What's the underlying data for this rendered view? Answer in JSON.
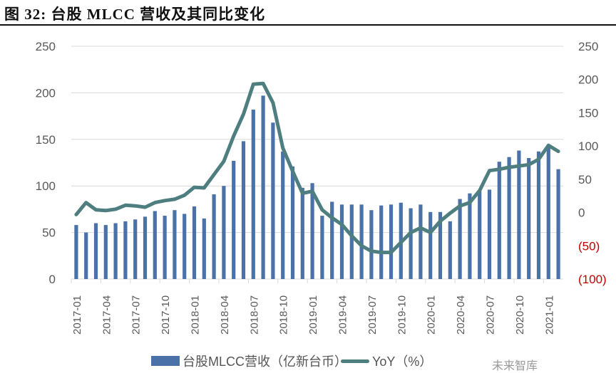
{
  "title": "图  32:  台股 MLCC 营收及其同比变化",
  "legend": {
    "bar_label": "台股MLCC营收（亿新台币）",
    "line_label": "YoY（%）"
  },
  "watermark": "未来智库",
  "colors": {
    "bar": "#4a72a8",
    "line": "#4e7e80",
    "grid": "#d9d9d9",
    "axis_text": "#595959",
    "negative_text": "#c00000"
  },
  "chart_data": {
    "type": "bar+line",
    "title": "台股 MLCC 营收及其同比变化",
    "xlabel": "",
    "ylabel_left": "台股MLCC营收（亿新台币）",
    "ylabel_right": "YoY（%）",
    "ylim_left": [
      0,
      250
    ],
    "ylim_right": [
      -100,
      250
    ],
    "yticks_left": [
      "0",
      "50",
      "100",
      "150",
      "200",
      "250"
    ],
    "yticks_right": [
      "(100)",
      "(50)",
      "0",
      "50",
      "100",
      "150",
      "200",
      "250"
    ],
    "grid": true,
    "legend_position": "bottom",
    "x_tick_labels": [
      "2017-01",
      "2017-04",
      "2017-07",
      "2017-10",
      "2018-01",
      "2018-04",
      "2018-07",
      "2018-10",
      "2019-01",
      "2019-04",
      "2019-07",
      "2019-10",
      "2020-01",
      "2020-04",
      "2020-07",
      "2020-10",
      "2021-01"
    ],
    "categories": [
      "2017-01",
      "2017-02",
      "2017-03",
      "2017-04",
      "2017-05",
      "2017-06",
      "2017-07",
      "2017-08",
      "2017-09",
      "2017-10",
      "2017-11",
      "2017-12",
      "2018-01",
      "2018-02",
      "2018-03",
      "2018-04",
      "2018-05",
      "2018-06",
      "2018-07",
      "2018-08",
      "2018-09",
      "2018-10",
      "2018-11",
      "2018-12",
      "2019-01",
      "2019-02",
      "2019-03",
      "2019-04",
      "2019-05",
      "2019-06",
      "2019-07",
      "2019-08",
      "2019-09",
      "2019-10",
      "2019-11",
      "2019-12",
      "2020-01",
      "2020-02",
      "2020-03",
      "2020-04",
      "2020-05",
      "2020-06",
      "2020-07",
      "2020-08",
      "2020-09",
      "2020-10",
      "2020-11",
      "2020-12",
      "2021-01",
      "2021-02"
    ],
    "series": [
      {
        "name": "台股MLCC营收（亿新台币）",
        "type": "bar",
        "axis": "left",
        "values": [
          58,
          50,
          60,
          58,
          60,
          62,
          64,
          67,
          73,
          68,
          74,
          70,
          78,
          65,
          91,
          100,
          127,
          148,
          182,
          197,
          168,
          137,
          121,
          98,
          103,
          68,
          83,
          80,
          80,
          80,
          74,
          79,
          80,
          82,
          76,
          80,
          72,
          72,
          62,
          86,
          92,
          95,
          96,
          126,
          131,
          138,
          130,
          137,
          144,
          118
        ]
      },
      {
        "name": "YoY（%）",
        "type": "line",
        "axis": "right",
        "values": [
          -3,
          15,
          4,
          3,
          5,
          11,
          10,
          8,
          15,
          18,
          20,
          26,
          38,
          37,
          57,
          77,
          115,
          148,
          193,
          194,
          165,
          97,
          62,
          29,
          32,
          4,
          -8,
          -18,
          -35,
          -50,
          -58,
          -60,
          -60,
          -45,
          -30,
          -23,
          -30,
          -13,
          -1,
          10,
          15,
          33,
          63,
          65,
          68,
          70,
          72,
          80,
          101,
          92
        ]
      }
    ]
  }
}
